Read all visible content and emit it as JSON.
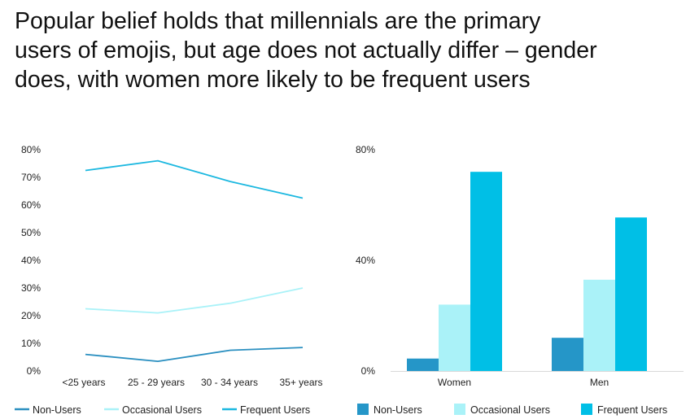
{
  "title_lines": [
    "Popular belief holds that millennials are the primary",
    "users of emojis, but age does not actually differ – gender",
    "does, with women more likely to be frequent users"
  ],
  "colors": {
    "non_users": "#2596c8",
    "occasional_users": "#aaf2f8",
    "frequent_users": "#00bfe6",
    "line_non_users": "#2a8fc0",
    "line_occasional_users": "#aaf2f8",
    "line_frequent_users": "#1cb8e0"
  },
  "chart_data": [
    {
      "type": "line",
      "title": "",
      "xlabel": "",
      "ylabel": "",
      "categories": [
        "<25 years",
        "25 - 29 years",
        "30 - 34 years",
        "35+ years"
      ],
      "ylim": [
        0,
        80
      ],
      "yticks": [
        "0%",
        "10%",
        "20%",
        "30%",
        "40%",
        "50%",
        "60%",
        "70%",
        "80%"
      ],
      "series": [
        {
          "name": "Non-Users",
          "values": [
            6,
            3.5,
            7.5,
            8.5
          ]
        },
        {
          "name": "Occasional Users",
          "values": [
            22.5,
            21,
            24.5,
            30
          ]
        },
        {
          "name": "Frequent Users",
          "values": [
            72.5,
            76,
            68.5,
            62.5
          ]
        }
      ],
      "legend": "bottom",
      "grid": false
    },
    {
      "type": "bar",
      "title": "",
      "xlabel": "",
      "ylabel": "",
      "categories": [
        "Women",
        "Men"
      ],
      "ylim": [
        0,
        80
      ],
      "yticks": [
        "0%",
        "40%",
        "80%"
      ],
      "series": [
        {
          "name": "Non-Users",
          "values": [
            4.5,
            12
          ]
        },
        {
          "name": "Occasional Users",
          "values": [
            24,
            33
          ]
        },
        {
          "name": "Frequent Users",
          "values": [
            72,
            55.5
          ]
        }
      ],
      "legend": "bottom",
      "grid": false
    }
  ]
}
